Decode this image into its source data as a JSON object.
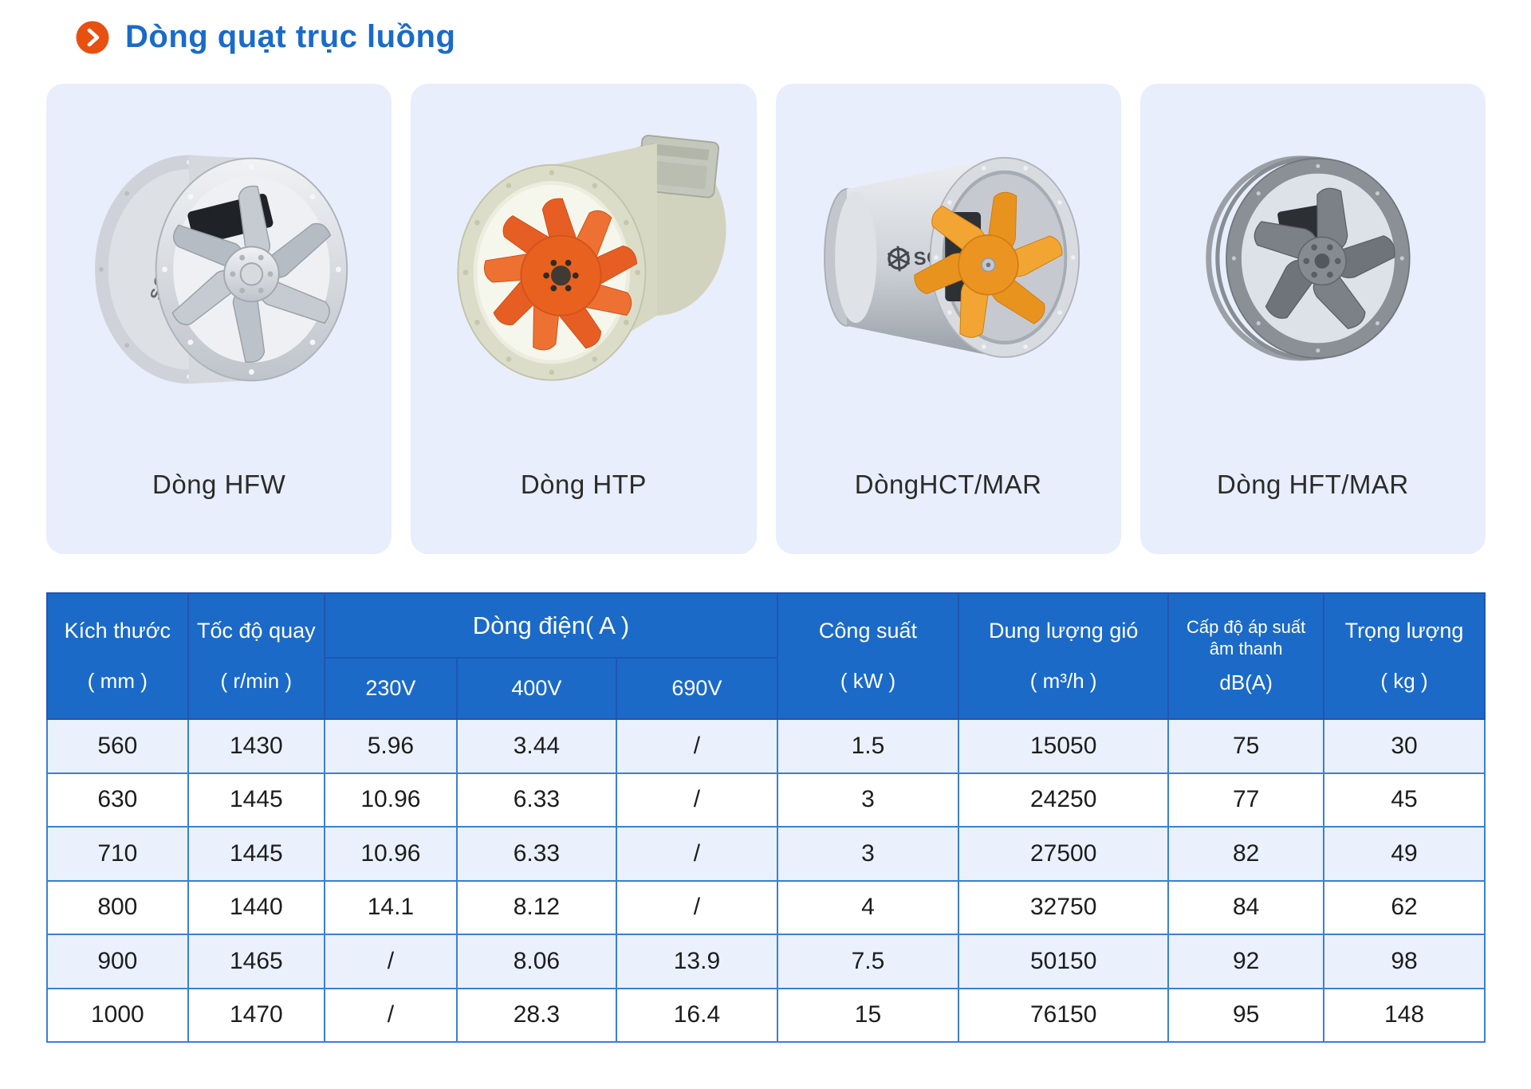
{
  "page": {
    "title": "Dòng quạt trục luồng"
  },
  "icons": {
    "header_bullet": "chevron-right-circle"
  },
  "colors": {
    "title_blue": "#1a6bc9",
    "icon_orange": "#e8500f",
    "card_background": "#e8eefb",
    "table_header_blue": "#1b6ac8",
    "table_header_divider": "#2355b0",
    "table_border_blue": "#3a80d2",
    "row_alternate": "#eaf1fc",
    "impeller_orange": "#e8611f"
  },
  "products": [
    {
      "name": "Dòng HFW"
    },
    {
      "name": "Dòng HTP"
    },
    {
      "name": "DòngHCT/MAR"
    },
    {
      "name": "Dòng HFT/MAR"
    }
  ],
  "table": {
    "headers": {
      "size": {
        "name": "Kích thước",
        "unit": "( mm )"
      },
      "speed": {
        "name": "Tốc độ quay",
        "unit": "( r/min )"
      },
      "current_group": {
        "name": "Dòng điện( A )",
        "subs": [
          "230V",
          "400V",
          "690V"
        ]
      },
      "power": {
        "name": "Công suất",
        "unit": "( kW )"
      },
      "airflow": {
        "name": "Dung lượng gió",
        "unit": "( m³/h )"
      },
      "noise": {
        "name_line1": "Cấp độ áp suất",
        "name_line2": "âm thanh",
        "unit": "dB(A)"
      },
      "weight": {
        "name": "Trọng lượng",
        "unit": "( kg )"
      }
    },
    "rows": [
      [
        "560",
        "1430",
        "5.96",
        "3.44",
        "/",
        "1.5",
        "15050",
        "75",
        "30"
      ],
      [
        "630",
        "1445",
        "10.96",
        "6.33",
        "/",
        "3",
        "24250",
        "77",
        "45"
      ],
      [
        "710",
        "1445",
        "10.96",
        "6.33",
        "/",
        "3",
        "27500",
        "82",
        "49"
      ],
      [
        "800",
        "1440",
        "14.1",
        "8.12",
        "/",
        "4",
        "32750",
        "84",
        "62"
      ],
      [
        "900",
        "1465",
        "/",
        "8.06",
        "13.9",
        "7.5",
        "50150",
        "92",
        "98"
      ],
      [
        "1000",
        "1470",
        "/",
        "28.3",
        "16.4",
        "15",
        "76150",
        "95",
        "148"
      ]
    ]
  }
}
